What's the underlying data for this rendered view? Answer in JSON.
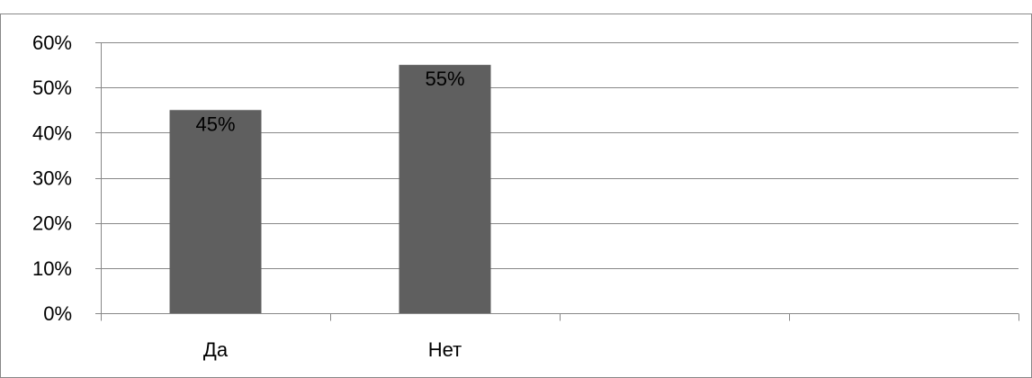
{
  "chart_data": {
    "type": "bar",
    "categories": [
      "Да",
      "Нет",
      "",
      ""
    ],
    "values": [
      45,
      55,
      null,
      null
    ],
    "data_labels": [
      "45%",
      "55%",
      "",
      ""
    ],
    "ylim": [
      0,
      60
    ],
    "y_ticks": [
      0,
      10,
      20,
      30,
      40,
      50,
      60
    ],
    "y_tick_labels": [
      "0%",
      "10%",
      "20%",
      "30%",
      "40%",
      "50%",
      "60%"
    ],
    "grid": true,
    "legend": "none",
    "colors": {
      "bar": "#5f5f5f",
      "grid": "#888888",
      "axis": "#888888",
      "border": "#888888",
      "text": "#000000"
    }
  }
}
